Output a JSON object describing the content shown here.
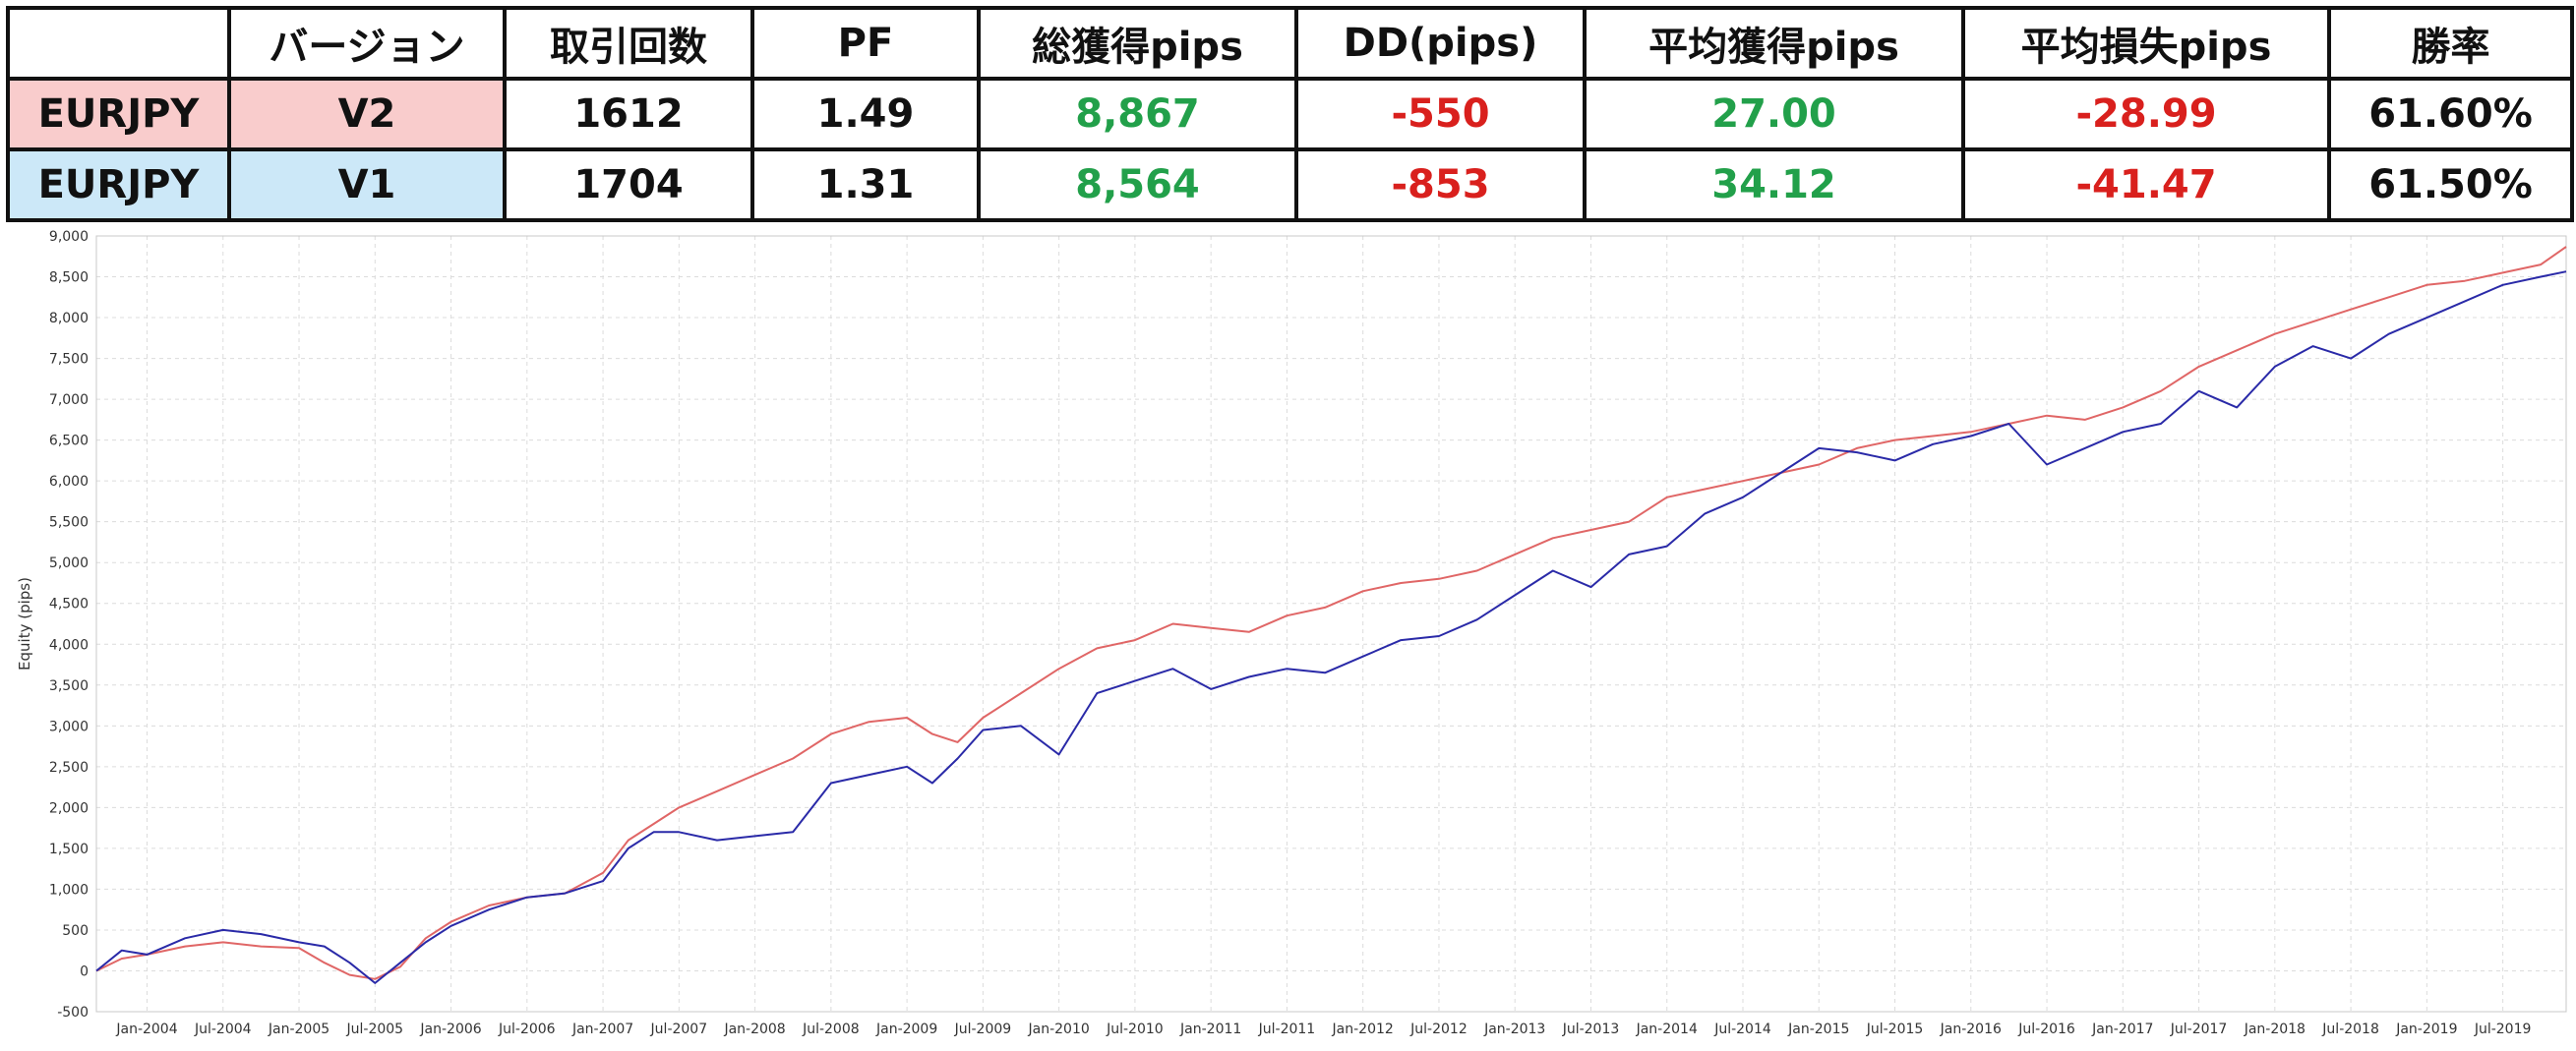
{
  "table": {
    "headers": [
      "",
      "バージョン",
      "取引回数",
      "PF",
      "総獲得pips",
      "DD(pips)",
      "平均獲得pips",
      "平均損失pips",
      "勝率"
    ],
    "rows": [
      {
        "pair": "EURJPY",
        "version": "V2",
        "trades": "1612",
        "pf": "1.49",
        "total_pips": "8,867",
        "dd_pips": "-550",
        "avg_win": "27.00",
        "avg_loss": "-28.99",
        "win_rate": "61.60%",
        "color": "#f9cccc"
      },
      {
        "pair": "EURJPY",
        "version": "V1",
        "trades": "1704",
        "pf": "1.31",
        "total_pips": "8,564",
        "dd_pips": "-853",
        "avg_win": "34.12",
        "avg_loss": "-41.47",
        "win_rate": "61.50%",
        "color": "#cce8f8"
      }
    ],
    "positive_color": "#22a04a",
    "negative_color": "#d9201d"
  },
  "chart_data": {
    "type": "line",
    "title": "",
    "xlabel": "",
    "ylabel": "Equity (pips)",
    "ylim": [
      -500,
      9000
    ],
    "yticks": [
      -500,
      0,
      500,
      1000,
      1500,
      2000,
      2500,
      3000,
      3500,
      4000,
      4500,
      5000,
      5500,
      6000,
      6500,
      7000,
      7500,
      8000,
      8500,
      9000
    ],
    "ytick_labels": [
      "-500",
      "0",
      "500",
      "1,000",
      "1,500",
      "2,000",
      "2,500",
      "3,000",
      "3,500",
      "4,000",
      "4,500",
      "5,000",
      "5,500",
      "6,000",
      "6,500",
      "7,000",
      "7,500",
      "8,000",
      "8,500",
      "9,000"
    ],
    "xlim": [
      "2003-09",
      "2019-12"
    ],
    "xtick_labels": [
      "Jan-2004",
      "Jul-2004",
      "Jan-2005",
      "Jul-2005",
      "Jan-2006",
      "Jul-2006",
      "Jan-2007",
      "Jul-2007",
      "Jan-2008",
      "Jul-2008",
      "Jan-2009",
      "Jul-2009",
      "Jan-2010",
      "Jul-2010",
      "Jan-2011",
      "Jul-2011",
      "Jan-2012",
      "Jul-2012",
      "Jan-2013",
      "Jul-2013",
      "Jan-2014",
      "Jul-2014",
      "Jan-2015",
      "Jul-2015",
      "Jan-2016",
      "Jul-2016",
      "Jan-2017",
      "Jul-2017",
      "Jan-2018",
      "Jul-2018",
      "Jan-2019",
      "Jul-2019"
    ],
    "xticks": [
      "2004-01",
      "2004-07",
      "2005-01",
      "2005-07",
      "2006-01",
      "2006-07",
      "2007-01",
      "2007-07",
      "2008-01",
      "2008-07",
      "2009-01",
      "2009-07",
      "2010-01",
      "2010-07",
      "2011-01",
      "2011-07",
      "2012-01",
      "2012-07",
      "2013-01",
      "2013-07",
      "2014-01",
      "2014-07",
      "2015-01",
      "2015-07",
      "2016-01",
      "2016-07",
      "2017-01",
      "2017-07",
      "2018-01",
      "2018-07",
      "2019-01",
      "2019-07"
    ],
    "grid": true,
    "legend": "none",
    "series": [
      {
        "color": "#e06666",
        "x": [
          "2003-09",
          "2003-11",
          "2004-01",
          "2004-04",
          "2004-07",
          "2004-10",
          "2005-01",
          "2005-03",
          "2005-05",
          "2005-07",
          "2005-09",
          "2005-11",
          "2006-01",
          "2006-04",
          "2006-07",
          "2006-10",
          "2007-01",
          "2007-03",
          "2007-05",
          "2007-07",
          "2007-10",
          "2008-01",
          "2008-04",
          "2008-07",
          "2008-10",
          "2009-01",
          "2009-03",
          "2009-05",
          "2009-07",
          "2009-10",
          "2010-01",
          "2010-04",
          "2010-07",
          "2010-10",
          "2011-01",
          "2011-04",
          "2011-07",
          "2011-10",
          "2012-01",
          "2012-04",
          "2012-07",
          "2012-10",
          "2013-01",
          "2013-04",
          "2013-07",
          "2013-10",
          "2014-01",
          "2014-04",
          "2014-07",
          "2014-10",
          "2015-01",
          "2015-04",
          "2015-07",
          "2015-10",
          "2016-01",
          "2016-04",
          "2016-07",
          "2016-10",
          "2017-01",
          "2017-04",
          "2017-07",
          "2017-10",
          "2018-01",
          "2018-04",
          "2018-07",
          "2018-10",
          "2019-01",
          "2019-04",
          "2019-07",
          "2019-10",
          "2019-12"
        ],
        "y": [
          0,
          150,
          200,
          300,
          350,
          300,
          280,
          100,
          -50,
          -100,
          50,
          400,
          600,
          800,
          900,
          950,
          1200,
          1600,
          1800,
          2000,
          2200,
          2400,
          2600,
          2900,
          3050,
          3100,
          2900,
          2800,
          3100,
          3400,
          3700,
          3950,
          4050,
          4250,
          4200,
          4150,
          4350,
          4450,
          4650,
          4750,
          4800,
          4900,
          5100,
          5300,
          5400,
          5500,
          5800,
          5900,
          6000,
          6100,
          6200,
          6400,
          6500,
          6550,
          6600,
          6700,
          6800,
          6750,
          6900,
          7100,
          7400,
          7600,
          7800,
          7950,
          8100,
          8250,
          8400,
          8450,
          8550,
          8650,
          8867
        ]
      },
      {
        "color": "#2a2aa8",
        "x": [
          "2003-09",
          "2003-11",
          "2004-01",
          "2004-04",
          "2004-07",
          "2004-10",
          "2005-01",
          "2005-03",
          "2005-05",
          "2005-07",
          "2005-09",
          "2005-11",
          "2006-01",
          "2006-04",
          "2006-07",
          "2006-10",
          "2007-01",
          "2007-03",
          "2007-05",
          "2007-07",
          "2007-10",
          "2008-01",
          "2008-04",
          "2008-07",
          "2008-10",
          "2009-01",
          "2009-03",
          "2009-05",
          "2009-07",
          "2009-10",
          "2010-01",
          "2010-04",
          "2010-07",
          "2010-10",
          "2011-01",
          "2011-04",
          "2011-07",
          "2011-10",
          "2012-01",
          "2012-04",
          "2012-07",
          "2012-10",
          "2013-01",
          "2013-04",
          "2013-07",
          "2013-10",
          "2014-01",
          "2014-04",
          "2014-07",
          "2014-10",
          "2015-01",
          "2015-04",
          "2015-07",
          "2015-10",
          "2016-01",
          "2016-04",
          "2016-07",
          "2016-10",
          "2017-01",
          "2017-04",
          "2017-07",
          "2017-10",
          "2018-01",
          "2018-04",
          "2018-07",
          "2018-10",
          "2019-01",
          "2019-04",
          "2019-07",
          "2019-10",
          "2019-12"
        ],
        "y": [
          0,
          250,
          200,
          400,
          500,
          450,
          350,
          300,
          100,
          -150,
          100,
          350,
          550,
          750,
          900,
          950,
          1100,
          1500,
          1700,
          1700,
          1600,
          1650,
          1700,
          2300,
          2400,
          2500,
          2300,
          2600,
          2950,
          3000,
          2650,
          3400,
          3550,
          3700,
          3450,
          3600,
          3700,
          3650,
          3850,
          4050,
          4100,
          4300,
          4600,
          4900,
          4700,
          5100,
          5200,
          5600,
          5800,
          6100,
          6400,
          6350,
          6250,
          6450,
          6550,
          6700,
          6200,
          6400,
          6600,
          6700,
          7100,
          6900,
          7400,
          7650,
          7500,
          7800,
          8000,
          8200,
          8400,
          8500,
          8564
        ]
      }
    ]
  }
}
